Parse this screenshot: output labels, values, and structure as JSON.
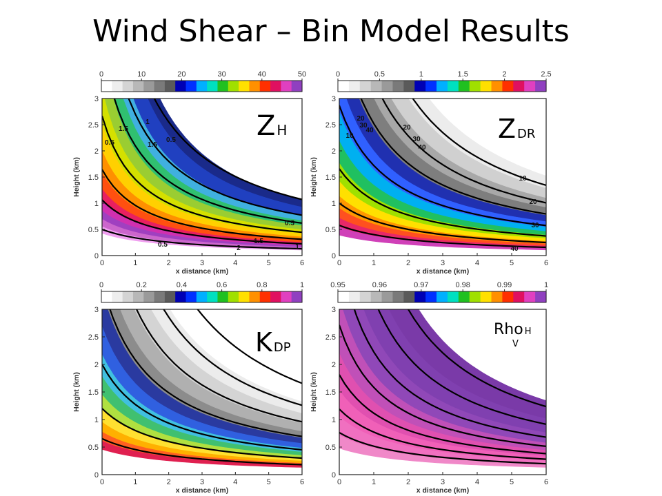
{
  "slide": {
    "title": "Wind Shear – Bin Model Results"
  },
  "chart_data": [
    {
      "type": "heatmap",
      "label_main": "Z",
      "label_sub": "H",
      "colorbar_ticks": [
        "0",
        "10",
        "20",
        "30",
        "40",
        "50"
      ],
      "colorbar_range": [
        0,
        50
      ],
      "xlabel": "x distance (km)",
      "ylabel": "Height (km)",
      "xticks": [
        "0",
        "1",
        "2",
        "3",
        "4",
        "5",
        "6"
      ],
      "yticks": [
        "0",
        "0.5",
        "1",
        "1.5",
        "2",
        "2.5",
        "3"
      ],
      "xlim": [
        0,
        6
      ],
      "ylim": [
        0,
        3
      ],
      "contour_labels": [
        "0.5",
        "1.5",
        "1",
        "1.5",
        "0.5",
        "0.5",
        "1",
        "1.5",
        "2",
        "0.5"
      ]
    },
    {
      "type": "heatmap",
      "label_main": "Z",
      "label_sub": "DR",
      "colorbar_ticks": [
        "0",
        "0.5",
        "1",
        "1.5",
        "2",
        "2.5"
      ],
      "colorbar_range": [
        0,
        2.5
      ],
      "xlabel": "x distance (km)",
      "ylabel": "Height (km)",
      "xticks": [
        "0",
        "1",
        "2",
        "3",
        "4",
        "5",
        "6"
      ],
      "yticks": [
        "0",
        "0.5",
        "1",
        "1.5",
        "2",
        "2.5",
        "3"
      ],
      "xlim": [
        0,
        6
      ],
      "ylim": [
        0,
        3
      ],
      "contour_labels": [
        "10",
        "20",
        "30",
        "40",
        "20",
        "30",
        "40",
        "10",
        "20",
        "30",
        "40"
      ]
    },
    {
      "type": "heatmap",
      "label_main": "K",
      "label_sub": "DP",
      "colorbar_ticks": [
        "0",
        "0.2",
        "0.4",
        "0.6",
        "0.8",
        "1"
      ],
      "colorbar_range": [
        0,
        1
      ],
      "xlabel": "x distance (km)",
      "ylabel": "Height (km)",
      "xticks": [
        "0",
        "1",
        "2",
        "3",
        "4",
        "5",
        "6"
      ],
      "yticks": [
        "0",
        "0.5",
        "1",
        "1.5",
        "2",
        "2.5",
        "3"
      ],
      "xlim": [
        0,
        6
      ],
      "ylim": [
        0,
        3
      ]
    },
    {
      "type": "heatmap",
      "label_main": "Rho",
      "label_sub": "H",
      "label_sub2": "V",
      "colorbar_ticks": [
        "0.95",
        "0.96",
        "0.97",
        "0.98",
        "0.99",
        "1"
      ],
      "colorbar_range": [
        0.95,
        1
      ],
      "xlabel": "x distance (km)",
      "ylabel": "Height (km)",
      "xticks": [
        "0",
        "1",
        "2",
        "3",
        "4",
        "5",
        "6"
      ],
      "yticks": [
        "0",
        "0.5",
        "1",
        "1.5",
        "2",
        "2.5",
        "3"
      ],
      "xlim": [
        0,
        6
      ],
      "ylim": [
        0,
        3
      ]
    }
  ]
}
